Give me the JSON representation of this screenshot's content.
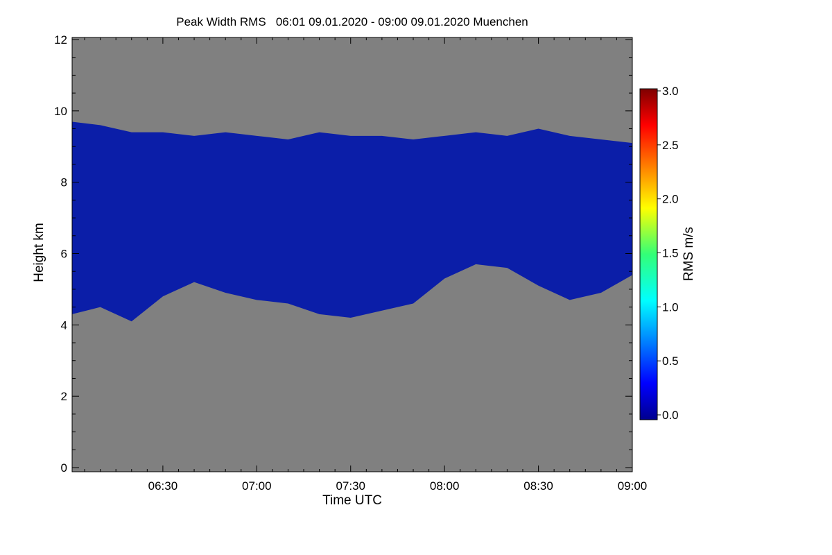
{
  "chart_data": {
    "type": "heatmap",
    "title": "Peak Width RMS   06:01 09.01.2020 - 09:00 09.01.2020 Muenchen",
    "xlabel": "Time UTC",
    "ylabel": "Height km",
    "x_range_min": [
      1,
      180
    ],
    "x_ticks": [
      {
        "label": "06:30",
        "value": 30
      },
      {
        "label": "07:00",
        "value": 60
      },
      {
        "label": "07:30",
        "value": 90
      },
      {
        "label": "08:00",
        "value": 120
      },
      {
        "label": "08:30",
        "value": 150
      },
      {
        "label": "09:00",
        "value": 180
      }
    ],
    "ylim": [
      0,
      12
    ],
    "y_ticks": [
      "0",
      "2",
      "4",
      "6",
      "8",
      "10",
      "12"
    ],
    "background_color": "#808080",
    "colorbar": {
      "label": "RMS m/s",
      "range": [
        0,
        3
      ],
      "ticks": [
        "0.0",
        "0.5",
        "1.0",
        "1.5",
        "2.0",
        "2.5",
        "3.0"
      ],
      "colormap": "jet"
    },
    "cloud_layer": {
      "color": "#0b1ea8",
      "rms_approx": 0.2,
      "time_min": [
        1,
        10,
        20,
        30,
        40,
        50,
        60,
        70,
        80,
        90,
        100,
        110,
        120,
        130,
        140,
        150,
        160,
        170,
        180
      ],
      "top_km": [
        9.7,
        9.6,
        9.4,
        9.4,
        9.3,
        9.4,
        9.3,
        9.2,
        9.4,
        9.3,
        9.3,
        9.2,
        9.3,
        9.4,
        9.3,
        9.5,
        9.3,
        9.2,
        9.1
      ],
      "base_km": [
        4.3,
        4.5,
        4.1,
        4.8,
        5.2,
        4.9,
        4.7,
        4.6,
        4.3,
        4.2,
        4.4,
        4.6,
        5.3,
        5.7,
        5.6,
        5.1,
        4.7,
        4.9,
        5.4
      ]
    }
  }
}
